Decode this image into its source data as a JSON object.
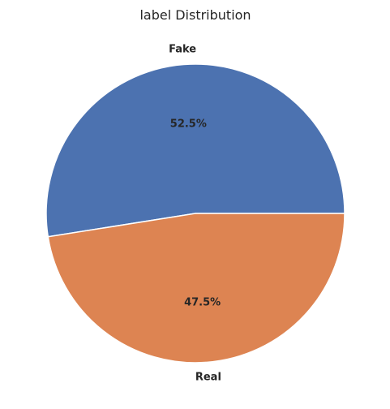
{
  "chart_data": {
    "type": "pie",
    "title": "label Distribution",
    "categories": [
      "Fake",
      "Real"
    ],
    "values": [
      52.5,
      47.5
    ],
    "percent_labels": [
      "52.5%",
      "47.5%"
    ],
    "colors": [
      "#4c72b0",
      "#dd8452"
    ],
    "start_angle_deg": 0,
    "direction": "counterclockwise",
    "legend": "none"
  }
}
